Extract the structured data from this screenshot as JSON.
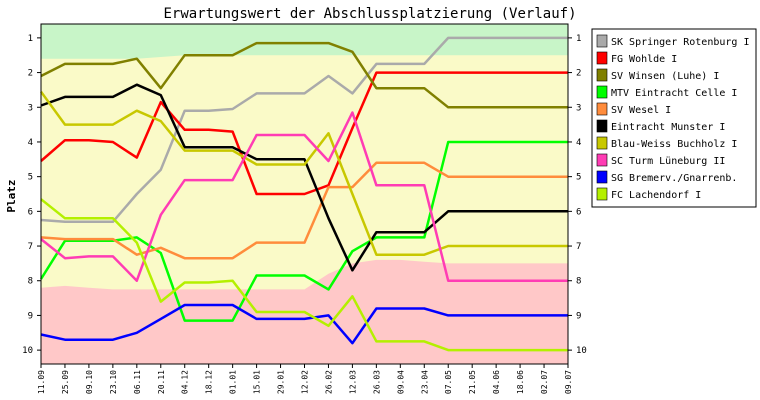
{
  "chart_data": {
    "type": "line",
    "title": "Erwartungswert der Abschlussplatzierung (Verlauf)",
    "ylabel": "Platz",
    "xlabel": "",
    "ylim": [
      0.6,
      10.4
    ],
    "y_inverted": true,
    "y_ticks": [
      1,
      2,
      3,
      4,
      5,
      6,
      7,
      8,
      9,
      10
    ],
    "legend_position": "right",
    "grid": false,
    "categories": [
      "11.09",
      "25.09",
      "09.10",
      "23.10",
      "06.11",
      "20.11",
      "04.12",
      "18.12",
      "01.01",
      "15.01",
      "29.01",
      "12.02",
      "26.02",
      "12.03",
      "26.03",
      "09.04",
      "23.04",
      "07.05",
      "21.05",
      "04.06",
      "18.06",
      "02.07",
      "09.07"
    ],
    "bands": {
      "green_bottom": [
        1.6,
        1.6,
        1.6,
        1.6,
        1.6,
        1.55,
        1.5,
        1.5,
        1.5,
        1.5,
        1.5,
        1.5,
        1.5,
        1.5,
        1.5,
        1.5,
        1.5,
        1.5,
        1.5,
        1.5,
        1.5,
        1.5,
        1.5
      ],
      "red_top": [
        8.2,
        8.15,
        8.2,
        8.25,
        8.25,
        8.25,
        8.25,
        8.25,
        8.25,
        8.25,
        8.25,
        8.25,
        7.8,
        7.5,
        7.4,
        7.4,
        7.45,
        7.5,
        7.5,
        7.5,
        7.5,
        7.5,
        7.5
      ],
      "colors": {
        "green": "#c8f5c8",
        "yellow": "#fafac8",
        "red": "#ffc8c8"
      }
    },
    "series": [
      {
        "name": "SK Springer Rotenburg I",
        "color": "#aaaaaa",
        "values": [
          6.25,
          6.3,
          6.3,
          6.3,
          5.5,
          4.8,
          3.1,
          3.1,
          3.05,
          2.6,
          2.6,
          2.6,
          2.1,
          2.6,
          1.75,
          1.75,
          1.75,
          1.0,
          1.0,
          1.0,
          1.0,
          1.0,
          1.0
        ]
      },
      {
        "name": "FG Wohlde I",
        "color": "#ff0000",
        "values": [
          4.55,
          3.95,
          3.95,
          4.0,
          4.45,
          2.85,
          3.65,
          3.65,
          3.7,
          5.5,
          5.5,
          5.5,
          5.25,
          3.6,
          2.0,
          2.0,
          2.0,
          2.0,
          2.0,
          2.0,
          2.0,
          2.0,
          2.0
        ]
      },
      {
        "name": "SV Winsen (Luhe) I",
        "color": "#808000",
        "values": [
          2.1,
          1.75,
          1.75,
          1.75,
          1.6,
          2.45,
          1.5,
          1.5,
          1.5,
          1.15,
          1.15,
          1.15,
          1.15,
          1.4,
          2.45,
          2.45,
          2.45,
          3.0,
          3.0,
          3.0,
          3.0,
          3.0,
          3.0
        ]
      },
      {
        "name": "MTV Eintracht Celle I",
        "color": "#00ff00",
        "values": [
          7.95,
          6.85,
          6.85,
          6.85,
          6.75,
          7.2,
          9.15,
          9.15,
          9.15,
          7.85,
          7.85,
          7.85,
          8.25,
          7.15,
          6.75,
          6.75,
          6.75,
          4.0,
          4.0,
          4.0,
          4.0,
          4.0,
          4.0
        ]
      },
      {
        "name": "SV Wesel I",
        "color": "#ff8c3c",
        "values": [
          6.75,
          6.8,
          6.8,
          6.8,
          7.25,
          7.05,
          7.35,
          7.35,
          7.35,
          6.9,
          6.9,
          6.9,
          5.3,
          5.3,
          4.6,
          4.6,
          4.6,
          5.0,
          5.0,
          5.0,
          5.0,
          5.0,
          5.0
        ]
      },
      {
        "name": "Eintracht Munster I",
        "color": "#000000",
        "values": [
          2.95,
          2.7,
          2.7,
          2.7,
          2.35,
          2.65,
          4.15,
          4.15,
          4.15,
          4.5,
          4.5,
          4.5,
          6.2,
          7.7,
          6.6,
          6.6,
          6.6,
          6.0,
          6.0,
          6.0,
          6.0,
          6.0,
          6.0
        ]
      },
      {
        "name": "Blau-Weiss Buchholz I",
        "color": "#c8c800",
        "values": [
          2.55,
          3.5,
          3.5,
          3.5,
          3.1,
          3.4,
          4.25,
          4.25,
          4.25,
          4.65,
          4.65,
          4.65,
          3.75,
          5.5,
          7.25,
          7.25,
          7.25,
          7.0,
          7.0,
          7.0,
          7.0,
          7.0,
          7.0
        ]
      },
      {
        "name": "SC Turm Lüneburg II",
        "color": "#ff3cb4",
        "values": [
          6.8,
          7.35,
          7.3,
          7.3,
          8.0,
          6.1,
          5.1,
          5.1,
          5.1,
          3.8,
          3.8,
          3.8,
          4.55,
          3.15,
          5.25,
          5.25,
          5.25,
          8.0,
          8.0,
          8.0,
          8.0,
          8.0,
          8.0
        ]
      },
      {
        "name": "SG Bremerv./Gnarrenb.",
        "color": "#0000ff",
        "values": [
          9.55,
          9.7,
          9.7,
          9.7,
          9.5,
          9.1,
          8.7,
          8.7,
          8.7,
          9.1,
          9.1,
          9.1,
          9.0,
          9.8,
          8.8,
          8.8,
          8.8,
          9.0,
          9.0,
          9.0,
          9.0,
          9.0,
          9.0
        ]
      },
      {
        "name": "FC Lachendorf I",
        "color": "#b4f000",
        "values": [
          5.65,
          6.2,
          6.2,
          6.2,
          6.9,
          8.6,
          8.05,
          8.05,
          8.0,
          8.9,
          8.9,
          8.9,
          9.3,
          8.45,
          9.75,
          9.75,
          9.75,
          10.0,
          10.0,
          10.0,
          10.0,
          10.0,
          10.0
        ]
      }
    ]
  }
}
